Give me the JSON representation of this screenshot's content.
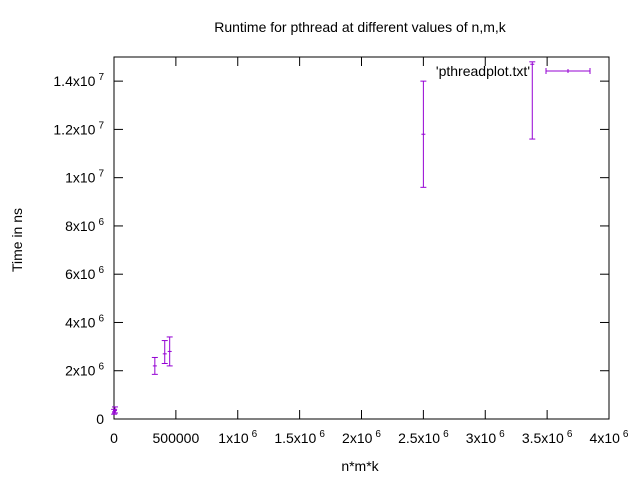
{
  "chart_data": {
    "type": "errorbar",
    "title": "Runtime for pthread at different values of n,m,k",
    "xlabel": "n*m*k",
    "ylabel": "Time in ns",
    "xlim": [
      0,
      4000000
    ],
    "ylim": [
      0,
      15000000
    ],
    "grid": false,
    "legend_position": "top-right",
    "x_ticks": [
      {
        "value": 0,
        "base": "0",
        "exp": ""
      },
      {
        "value": 500000,
        "base": "500000",
        "exp": ""
      },
      {
        "value": 1000000,
        "base": "1x10",
        "exp": "6"
      },
      {
        "value": 1500000,
        "base": "1.5x10",
        "exp": "6"
      },
      {
        "value": 2000000,
        "base": "2x10",
        "exp": "6"
      },
      {
        "value": 2500000,
        "base": "2.5x10",
        "exp": "6"
      },
      {
        "value": 3000000,
        "base": "3x10",
        "exp": "6"
      },
      {
        "value": 3500000,
        "base": "3.5x10",
        "exp": "6"
      },
      {
        "value": 4000000,
        "base": "4x10",
        "exp": "6"
      }
    ],
    "y_ticks": [
      {
        "value": 0,
        "base": "0",
        "exp": ""
      },
      {
        "value": 2000000,
        "base": "2x10",
        "exp": "6"
      },
      {
        "value": 4000000,
        "base": "4x10",
        "exp": "6"
      },
      {
        "value": 6000000,
        "base": "6x10",
        "exp": "6"
      },
      {
        "value": 8000000,
        "base": "8x10",
        "exp": "6"
      },
      {
        "value": 10000000,
        "base": "1x10",
        "exp": "7"
      },
      {
        "value": 12000000,
        "base": "1.2x10",
        "exp": "7"
      },
      {
        "value": 14000000,
        "base": "1.4x10",
        "exp": "7"
      }
    ],
    "series": [
      {
        "name": "'pthreadplot.txt'",
        "color": "#9400d3",
        "points": [
          {
            "x": 1000,
            "y": 300000,
            "ylow": 200000,
            "yhigh": 400000
          },
          {
            "x": 8000,
            "y": 350000,
            "ylow": 250000,
            "yhigh": 500000
          },
          {
            "x": 330000,
            "y": 2200000,
            "ylow": 1850000,
            "yhigh": 2550000
          },
          {
            "x": 410000,
            "y": 2700000,
            "ylow": 2300000,
            "yhigh": 3250000
          },
          {
            "x": 450000,
            "y": 2800000,
            "ylow": 2200000,
            "yhigh": 3400000
          },
          {
            "x": 2500000,
            "y": 11800000,
            "ylow": 9600000,
            "yhigh": 14000000
          },
          {
            "x": 3380000,
            "y": 14700000,
            "ylow": 11600000,
            "yhigh": 14800000
          }
        ]
      }
    ]
  }
}
